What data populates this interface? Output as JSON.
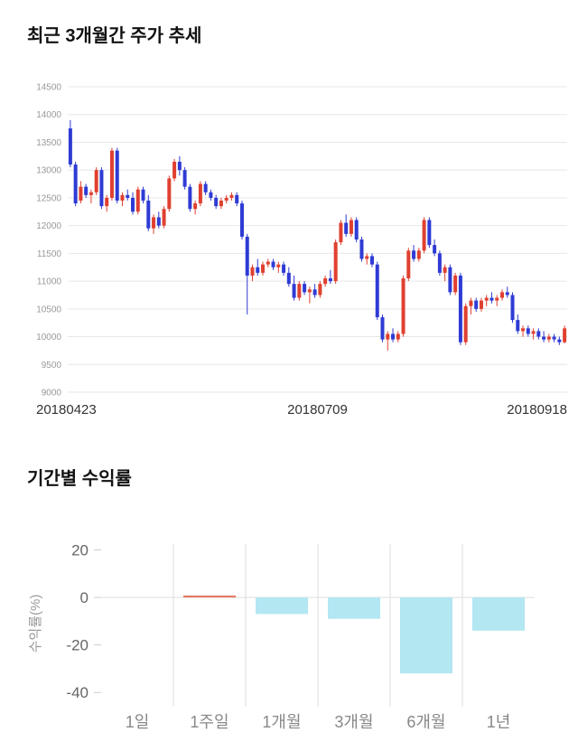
{
  "sections": {
    "price_trend": {
      "title": "최근 3개월간 주가 추세"
    },
    "returns": {
      "title": "기간별 수익률"
    }
  },
  "chart_data": [
    {
      "type": "candlestick",
      "title": "최근 3개월간 주가 추세",
      "ylim": [
        9000,
        14500
      ],
      "y_ticks": [
        9000,
        9500,
        10000,
        10500,
        11000,
        11500,
        12000,
        12500,
        13000,
        13500,
        14000,
        14500
      ],
      "x_tick_labels": [
        "20180423",
        "20180709",
        "20180918"
      ],
      "up_color": "#e04030",
      "down_color": "#2e3bd4",
      "grid_color": "#e7e7e7",
      "grid": true,
      "legend": false,
      "candles_ohlc": [
        [
          13750,
          13900,
          13050,
          13100
        ],
        [
          13100,
          13150,
          12350,
          12400
        ],
        [
          12450,
          12800,
          12400,
          12700
        ],
        [
          12700,
          12750,
          12500,
          12550
        ],
        [
          12550,
          12650,
          12400,
          12600
        ],
        [
          12600,
          13050,
          12550,
          13000
        ],
        [
          13000,
          13050,
          12300,
          12350
        ],
        [
          12350,
          12550,
          12250,
          12500
        ],
        [
          12500,
          13400,
          12450,
          13350
        ],
        [
          13350,
          13400,
          12400,
          12450
        ],
        [
          12450,
          12600,
          12350,
          12550
        ],
        [
          12550,
          12650,
          12450,
          12500
        ],
        [
          12500,
          12600,
          12200,
          12250
        ],
        [
          12250,
          12700,
          12200,
          12650
        ],
        [
          12650,
          12700,
          12400,
          12450
        ],
        [
          12450,
          12550,
          11900,
          11950
        ],
        [
          11950,
          12200,
          11850,
          12150
        ],
        [
          12150,
          12250,
          11950,
          12000
        ],
        [
          12000,
          12350,
          11950,
          12300
        ],
        [
          12300,
          12900,
          12250,
          12850
        ],
        [
          12850,
          13200,
          12800,
          13150
        ],
        [
          13150,
          13250,
          12900,
          13000
        ],
        [
          13000,
          13050,
          12650,
          12700
        ],
        [
          12700,
          12750,
          12250,
          12300
        ],
        [
          12300,
          12450,
          12200,
          12400
        ],
        [
          12400,
          12800,
          12350,
          12750
        ],
        [
          12750,
          12800,
          12550,
          12600
        ],
        [
          12600,
          12650,
          12450,
          12500
        ],
        [
          12500,
          12550,
          12300,
          12350
        ],
        [
          12350,
          12500,
          12300,
          12450
        ],
        [
          12450,
          12550,
          12400,
          12500
        ],
        [
          12500,
          12600,
          12450,
          12550
        ],
        [
          12550,
          12600,
          12350,
          12400
        ],
        [
          12400,
          12450,
          11750,
          11800
        ],
        [
          11800,
          11850,
          10400,
          11100
        ],
        [
          11100,
          11300,
          11000,
          11250
        ],
        [
          11250,
          11400,
          11100,
          11150
        ],
        [
          11150,
          11350,
          11100,
          11300
        ],
        [
          11300,
          11400,
          11250,
          11350
        ],
        [
          11350,
          11400,
          11200,
          11250
        ],
        [
          11250,
          11350,
          11150,
          11300
        ],
        [
          11300,
          11350,
          11100,
          11150
        ],
        [
          11150,
          11250,
          10900,
          10950
        ],
        [
          10950,
          11100,
          10650,
          10700
        ],
        [
          10700,
          11000,
          10650,
          10950
        ],
        [
          10950,
          11000,
          10750,
          10800
        ],
        [
          10800,
          10900,
          10600,
          10850
        ],
        [
          10850,
          10950,
          10700,
          10750
        ],
        [
          10750,
          11000,
          10700,
          10950
        ],
        [
          10950,
          11100,
          10900,
          11050
        ],
        [
          11050,
          11200,
          10950,
          11000
        ],
        [
          11000,
          11750,
          10950,
          11700
        ],
        [
          11700,
          12100,
          11650,
          12050
        ],
        [
          12050,
          12200,
          11800,
          11850
        ],
        [
          11850,
          12150,
          11800,
          12100
        ],
        [
          12100,
          12150,
          11700,
          11750
        ],
        [
          11750,
          11800,
          11350,
          11400
        ],
        [
          11400,
          11500,
          11300,
          11450
        ],
        [
          11450,
          11500,
          11250,
          11300
        ],
        [
          11300,
          11350,
          10300,
          10350
        ],
        [
          10350,
          10400,
          9900,
          9950
        ],
        [
          9950,
          10100,
          9750,
          10050
        ],
        [
          10050,
          10150,
          9900,
          9950
        ],
        [
          9950,
          10100,
          9900,
          10050
        ],
        [
          10050,
          11100,
          10000,
          11050
        ],
        [
          11050,
          11600,
          11000,
          11550
        ],
        [
          11550,
          11650,
          11350,
          11400
        ],
        [
          11400,
          11600,
          11350,
          11550
        ],
        [
          11550,
          12150,
          11500,
          12100
        ],
        [
          12100,
          12150,
          11600,
          11650
        ],
        [
          11650,
          11750,
          11450,
          11500
        ],
        [
          11500,
          11550,
          11100,
          11150
        ],
        [
          11150,
          11300,
          11000,
          11250
        ],
        [
          11250,
          11300,
          10750,
          10800
        ],
        [
          10800,
          11150,
          10750,
          11100
        ],
        [
          11100,
          11150,
          9850,
          9900
        ],
        [
          9900,
          10600,
          9850,
          10550
        ],
        [
          10550,
          10700,
          10400,
          10650
        ],
        [
          10650,
          10700,
          10450,
          10500
        ],
        [
          10500,
          10700,
          10450,
          10650
        ],
        [
          10650,
          10750,
          10550,
          10700
        ],
        [
          10700,
          10800,
          10600,
          10650
        ],
        [
          10650,
          10750,
          10550,
          10700
        ],
        [
          10700,
          10850,
          10650,
          10800
        ],
        [
          10800,
          10900,
          10700,
          10750
        ],
        [
          10750,
          10800,
          10250,
          10300
        ],
        [
          10300,
          10400,
          10050,
          10100
        ],
        [
          10100,
          10200,
          10000,
          10150
        ],
        [
          10150,
          10200,
          10000,
          10050
        ],
        [
          10050,
          10150,
          9950,
          10100
        ],
        [
          10100,
          10150,
          9950,
          10000
        ],
        [
          10000,
          10100,
          9900,
          9950
        ],
        [
          9950,
          10050,
          9900,
          10000
        ],
        [
          10000,
          10050,
          9900,
          9950
        ],
        [
          9950,
          10000,
          9850,
          9900
        ],
        [
          9900,
          10200,
          9880,
          10150
        ]
      ]
    },
    {
      "type": "bar",
      "title": "기간별 수익률",
      "categories": [
        "1일",
        "1주일",
        "1개월",
        "3개월",
        "6개월",
        "1년"
      ],
      "values": [
        0,
        0.3,
        -7,
        -9,
        -32,
        -14
      ],
      "ylabel": "수익률(%)",
      "xlabel": "",
      "ylim": [
        -46,
        24
      ],
      "y_ticks": [
        20,
        0,
        -20,
        -40
      ],
      "bar_color_negative": "#b3e7f2",
      "bar_color_positive": "#e4735c",
      "grid": "vertical-between-categories",
      "grid_color": "#dddddd",
      "legend": false
    }
  ]
}
